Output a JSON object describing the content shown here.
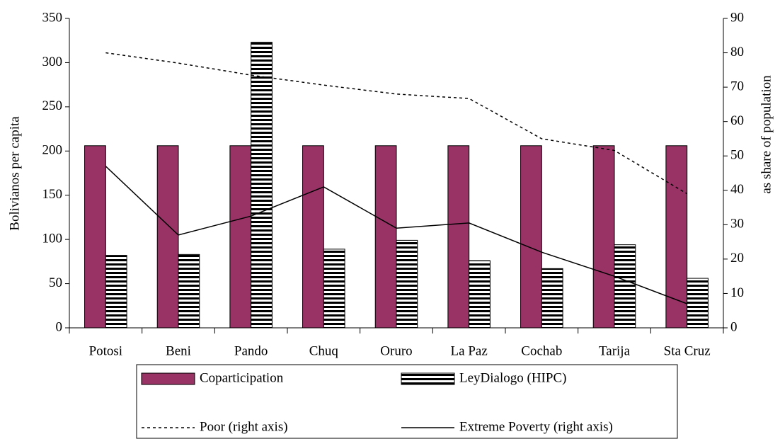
{
  "chart_data": {
    "type": "bar",
    "categories": [
      "Potosi",
      "Beni",
      "Pando",
      "Chuq",
      "Oruro",
      "La Paz",
      "Cochab",
      "Tarija",
      "Sta Cruz"
    ],
    "y_label": "Bolivianos per capita",
    "y2_label": "as share of population",
    "ylim": [
      0,
      350
    ],
    "yticks": [
      0,
      50,
      100,
      150,
      200,
      250,
      300,
      350
    ],
    "y2lim": [
      0,
      90
    ],
    "y2ticks": [
      0,
      10,
      20,
      30,
      40,
      50,
      60,
      70,
      80,
      90
    ],
    "grid": false,
    "legend": "bottom",
    "series": [
      {
        "name": "Coparticipation",
        "type": "bar",
        "color": "#993366",
        "values": [
          206,
          206,
          206,
          206,
          206,
          206,
          206,
          206,
          206
        ]
      },
      {
        "name": "LeyDialogo (HIPC)",
        "type": "bar",
        "color": "hatch",
        "values": [
          82,
          83,
          323,
          89,
          99,
          76,
          67,
          94,
          56
        ]
      },
      {
        "name": "Poor (right axis)",
        "type": "line",
        "axis": "y2",
        "color": "#000000",
        "dash": true,
        "values": [
          80,
          77,
          73.5,
          70.6,
          68,
          66.7,
          55,
          51.6,
          39
        ]
      },
      {
        "name": "Extreme Poverty (right axis)",
        "type": "line",
        "axis": "y2",
        "color": "#000000",
        "dash": false,
        "values": [
          47,
          27,
          32.5,
          41,
          29,
          30.5,
          22,
          15,
          7
        ]
      }
    ]
  }
}
